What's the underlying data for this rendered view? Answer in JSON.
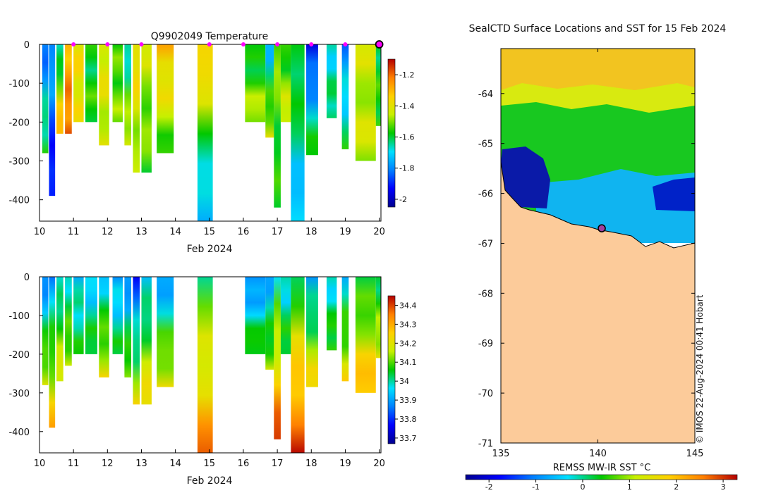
{
  "chart_data": [
    {
      "type": "heatmap",
      "title": "Q9902049  Temperature",
      "xlabel": "Feb 2024",
      "ylabel": "",
      "x_ticks": [
        "10",
        "11",
        "12",
        "13",
        "14",
        "15",
        "16",
        "17",
        "18",
        "19",
        "20"
      ],
      "x_range": [
        10,
        20.05
      ],
      "y_ticks": [
        "0",
        "-100",
        "-200",
        "-300",
        "-400"
      ],
      "y_range": [
        -455,
        0
      ],
      "colorbar_ticks": [
        "-1.2",
        "-1.4",
        "-1.6",
        "-1.8",
        "-2"
      ],
      "colorbar_range": [
        -2.05,
        -1.1
      ],
      "marker_days": [
        11,
        12,
        13,
        15,
        16,
        17,
        18,
        19
      ],
      "last_profile_day": 20,
      "profiles": [
        {
          "t": 10.08,
          "w": 0.18,
          "bottom": -280,
          "top_value": -1.85,
          "bottom_value": -1.55
        },
        {
          "t": 10.28,
          "w": 0.18,
          "bottom": -390,
          "top_value": -1.75,
          "bottom_value": -1.95
        },
        {
          "t": 10.5,
          "w": 0.2,
          "bottom": -230,
          "top_value": -1.7,
          "bottom_value": -1.25
        },
        {
          "t": 10.75,
          "w": 0.2,
          "bottom": -230,
          "top_value": -1.3,
          "bottom_value": -1.2
        },
        {
          "t": 11.0,
          "w": 0.3,
          "bottom": -200,
          "top_value": -1.38,
          "bottom_value": -1.4
        },
        {
          "t": 11.35,
          "w": 0.35,
          "bottom": -200,
          "top_value": -1.6,
          "bottom_value": -1.55
        },
        {
          "t": 11.75,
          "w": 0.3,
          "bottom": -260,
          "top_value": -1.4,
          "bottom_value": -1.45
        },
        {
          "t": 12.15,
          "w": 0.3,
          "bottom": -200,
          "top_value": -1.55,
          "bottom_value": -1.5
        },
        {
          "t": 12.5,
          "w": 0.2,
          "bottom": -260,
          "top_value": -1.7,
          "bottom_value": -1.4
        },
        {
          "t": 12.75,
          "w": 0.2,
          "bottom": -330,
          "top_value": -1.35,
          "bottom_value": -1.5
        },
        {
          "t": 13.0,
          "w": 0.3,
          "bottom": -330,
          "top_value": -1.45,
          "bottom_value": -1.55
        },
        {
          "t": 13.45,
          "w": 0.5,
          "bottom": -280,
          "top_value": -1.3,
          "bottom_value": -1.55
        },
        {
          "t": 14.65,
          "w": 0.45,
          "bottom": -460,
          "top_value": -1.3,
          "bottom_value": -1.8
        },
        {
          "t": 16.05,
          "w": 0.6,
          "bottom": -200,
          "top_value": -1.62,
          "bottom_value": -1.45
        },
        {
          "t": 16.65,
          "w": 0.25,
          "bottom": -240,
          "top_value": -1.75,
          "bottom_value": -1.42
        },
        {
          "t": 16.9,
          "w": 0.2,
          "bottom": -420,
          "top_value": -1.5,
          "bottom_value": -1.6
        },
        {
          "t": 17.1,
          "w": 0.3,
          "bottom": -200,
          "top_value": -1.6,
          "bottom_value": -1.4
        },
        {
          "t": 17.4,
          "w": 0.4,
          "bottom": -460,
          "top_value": -1.55,
          "bottom_value": -1.75
        },
        {
          "t": 17.85,
          "w": 0.35,
          "bottom": -285,
          "top_value": -1.95,
          "bottom_value": -1.55
        },
        {
          "t": 18.45,
          "w": 0.3,
          "bottom": -190,
          "top_value": -1.7,
          "bottom_value": -1.6
        },
        {
          "t": 18.9,
          "w": 0.2,
          "bottom": -270,
          "top_value": -1.8,
          "bottom_value": -1.6
        },
        {
          "t": 19.3,
          "w": 0.6,
          "bottom": -300,
          "top_value": -1.45,
          "bottom_value": -1.45
        },
        {
          "t": 19.9,
          "w": 0.15,
          "bottom": -210,
          "top_value": -1.6,
          "bottom_value": -1.55
        }
      ]
    },
    {
      "type": "heatmap",
      "title": "",
      "xlabel": "Feb 2024",
      "ylabel": "",
      "x_ticks": [
        "10",
        "11",
        "12",
        "13",
        "14",
        "15",
        "16",
        "17",
        "18",
        "19",
        "20"
      ],
      "x_range": [
        10,
        20.05
      ],
      "y_ticks": [
        "0",
        "-100",
        "-200",
        "-300",
        "-400"
      ],
      "y_range": [
        -455,
        0
      ],
      "colorbar_ticks": [
        "34.4",
        "34.3",
        "34.2",
        "34.1",
        "34",
        "33.9",
        "33.8",
        "33.7"
      ],
      "colorbar_range": [
        33.67,
        34.45
      ],
      "profiles": [
        {
          "t": 10.08,
          "w": 0.18,
          "bottom": -280,
          "top_value": 33.85,
          "bottom_value": 34.2
        },
        {
          "t": 10.28,
          "w": 0.18,
          "bottom": -390,
          "top_value": 33.9,
          "bottom_value": 34.28
        },
        {
          "t": 10.5,
          "w": 0.2,
          "bottom": -270,
          "top_value": 33.95,
          "bottom_value": 34.22
        },
        {
          "t": 10.75,
          "w": 0.2,
          "bottom": -230,
          "top_value": 33.98,
          "bottom_value": 34.15
        },
        {
          "t": 11.0,
          "w": 0.3,
          "bottom": -200,
          "top_value": 33.95,
          "bottom_value": 34.05
        },
        {
          "t": 11.35,
          "w": 0.35,
          "bottom": -200,
          "top_value": 33.92,
          "bottom_value": 34.08
        },
        {
          "t": 11.75,
          "w": 0.3,
          "bottom": -260,
          "top_value": 33.95,
          "bottom_value": 34.2
        },
        {
          "t": 12.15,
          "w": 0.3,
          "bottom": -200,
          "top_value": 33.9,
          "bottom_value": 34.05
        },
        {
          "t": 12.5,
          "w": 0.2,
          "bottom": -260,
          "top_value": 33.85,
          "bottom_value": 34.15
        },
        {
          "t": 12.75,
          "w": 0.2,
          "bottom": -330,
          "top_value": 33.8,
          "bottom_value": 34.2
        },
        {
          "t": 13.0,
          "w": 0.3,
          "bottom": -330,
          "top_value": 33.92,
          "bottom_value": 34.25
        },
        {
          "t": 13.45,
          "w": 0.5,
          "bottom": -285,
          "top_value": 33.88,
          "bottom_value": 34.22
        },
        {
          "t": 14.65,
          "w": 0.45,
          "bottom": -460,
          "top_value": 34.05,
          "bottom_value": 34.35
        },
        {
          "t": 16.05,
          "w": 0.6,
          "bottom": -200,
          "top_value": 33.85,
          "bottom_value": 34.1
        },
        {
          "t": 16.65,
          "w": 0.25,
          "bottom": -240,
          "top_value": 33.9,
          "bottom_value": 34.15
        },
        {
          "t": 16.9,
          "w": 0.2,
          "bottom": -420,
          "top_value": 34.0,
          "bottom_value": 34.4
        },
        {
          "t": 17.1,
          "w": 0.3,
          "bottom": -200,
          "top_value": 33.95,
          "bottom_value": 34.08
        },
        {
          "t": 17.4,
          "w": 0.4,
          "bottom": -460,
          "top_value": 34.05,
          "bottom_value": 34.43
        },
        {
          "t": 17.85,
          "w": 0.35,
          "bottom": -285,
          "top_value": 33.9,
          "bottom_value": 34.25
        },
        {
          "t": 18.45,
          "w": 0.3,
          "bottom": -190,
          "top_value": 33.95,
          "bottom_value": 34.1
        },
        {
          "t": 18.9,
          "w": 0.2,
          "bottom": -270,
          "top_value": 33.95,
          "bottom_value": 34.22
        },
        {
          "t": 19.3,
          "w": 0.6,
          "bottom": -300,
          "top_value": 34.02,
          "bottom_value": 34.3
        },
        {
          "t": 19.9,
          "w": 0.15,
          "bottom": -210,
          "top_value": 34.02,
          "bottom_value": 34.2
        }
      ]
    },
    {
      "type": "heatmap",
      "title": "SealCTD Surface Locations and SST for 15 Feb 2024",
      "xlabel": "",
      "ylabel": "",
      "x_ticks": [
        "135",
        "140",
        "145"
      ],
      "x_range": [
        135,
        145
      ],
      "y_ticks": [
        "-64",
        "-65",
        "-66",
        "-67",
        "-68",
        "-69",
        "-70",
        "-71"
      ],
      "y_range": [
        -71,
        -63.1
      ],
      "colorbar_label": "REMSS MW-IR SST °C",
      "colorbar_ticks": [
        "-2",
        "-1",
        "0",
        "1",
        "2",
        "3"
      ],
      "colorbar_range": [
        -2.5,
        3.3
      ],
      "location_marker": {
        "lon": 140.2,
        "lat": -66.7
      },
      "credit": "© IMOS 22-Aug-2024 00:41 Hobart",
      "sst_zones": [
        {
          "name": "north",
          "lat_min": -63.9,
          "lat_max": -63.1,
          "value": 1.7
        },
        {
          "name": "upper-middle",
          "lat_min": -64.3,
          "lat_max": -63.9,
          "value": 1.0
        },
        {
          "name": "middle",
          "lat_min": -65.6,
          "lat_max": -64.3,
          "value": 0.0
        },
        {
          "name": "cold-west",
          "lat_min": -66.3,
          "lat_max": -65.0,
          "value": -2.0
        },
        {
          "name": "cool-east",
          "lat_min": -67.0,
          "lat_max": -65.6,
          "value": -1.0
        }
      ]
    }
  ]
}
